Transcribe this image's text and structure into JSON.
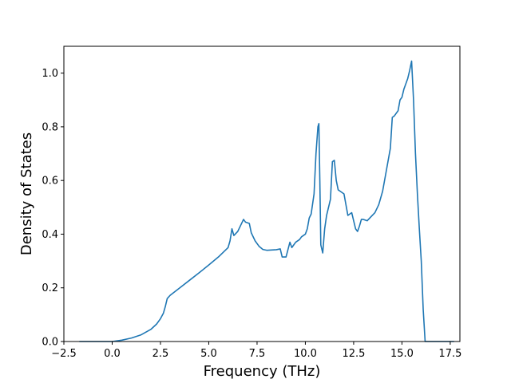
{
  "chart_data": {
    "type": "line",
    "title": "",
    "xlabel": "Frequency (THz)",
    "ylabel": "Density of States",
    "xlim": [
      -2.5,
      18.0
    ],
    "ylim": [
      0.0,
      1.1
    ],
    "grid": false,
    "x_ticks": [
      -2.5,
      0.0,
      2.5,
      5.0,
      7.5,
      10.0,
      12.5,
      15.0,
      17.5
    ],
    "x_tick_labels": [
      "−2.5",
      "0.0",
      "2.5",
      "5.0",
      "7.5",
      "10.0",
      "12.5",
      "15.0",
      "17.5"
    ],
    "y_ticks": [
      0.0,
      0.2,
      0.4,
      0.6,
      0.8,
      1.0
    ],
    "y_tick_labels": [
      "0.0",
      "0.2",
      "0.4",
      "0.6",
      "0.8",
      "1.0"
    ],
    "line_color": "#1f77b4",
    "series": [
      {
        "x": [
          -1.7,
          -1.0,
          0.0,
          0.5,
          1.0,
          1.5,
          2.0,
          2.3,
          2.5,
          2.65,
          2.75,
          2.85,
          3.0,
          3.5,
          4.0,
          4.5,
          5.0,
          5.5,
          6.0,
          6.1,
          6.2,
          6.3,
          6.5,
          6.8,
          6.9,
          7.1,
          7.2,
          7.4,
          7.6,
          7.8,
          8.0,
          8.5,
          8.7,
          8.8,
          9.0,
          9.2,
          9.3,
          9.5,
          9.7,
          9.8,
          10.0,
          10.1,
          10.2,
          10.3,
          10.45,
          10.55,
          10.65,
          10.7,
          10.75,
          10.8,
          10.9,
          11.0,
          11.1,
          11.3,
          11.4,
          11.5,
          11.6,
          11.7,
          11.8,
          12.0,
          12.2,
          12.3,
          12.4,
          12.5,
          12.6,
          12.7,
          12.8,
          12.9,
          13.0,
          13.2,
          13.4,
          13.6,
          13.8,
          14.0,
          14.2,
          14.4,
          14.5,
          14.6,
          14.8,
          14.9,
          15.0,
          15.1,
          15.2,
          15.3,
          15.4,
          15.5,
          15.6,
          15.7,
          15.8,
          15.9,
          16.0,
          16.1,
          16.2,
          17.7
        ],
        "y": [
          0.0,
          0.0,
          0.0,
          0.005,
          0.013,
          0.025,
          0.045,
          0.065,
          0.085,
          0.105,
          0.13,
          0.16,
          0.172,
          0.2,
          0.228,
          0.256,
          0.285,
          0.315,
          0.35,
          0.375,
          0.42,
          0.395,
          0.41,
          0.455,
          0.445,
          0.44,
          0.405,
          0.375,
          0.355,
          0.343,
          0.34,
          0.342,
          0.345,
          0.315,
          0.315,
          0.37,
          0.35,
          0.37,
          0.38,
          0.39,
          0.4,
          0.42,
          0.46,
          0.475,
          0.55,
          0.7,
          0.8,
          0.812,
          0.6,
          0.36,
          0.33,
          0.42,
          0.47,
          0.53,
          0.67,
          0.675,
          0.6,
          0.565,
          0.56,
          0.55,
          0.47,
          0.475,
          0.48,
          0.45,
          0.42,
          0.41,
          0.43,
          0.455,
          0.455,
          0.45,
          0.465,
          0.48,
          0.51,
          0.56,
          0.64,
          0.72,
          0.835,
          0.84,
          0.86,
          0.9,
          0.91,
          0.94,
          0.96,
          0.98,
          1.01,
          1.045,
          0.9,
          0.7,
          0.55,
          0.42,
          0.3,
          0.12,
          0.0,
          0.0
        ]
      }
    ]
  }
}
